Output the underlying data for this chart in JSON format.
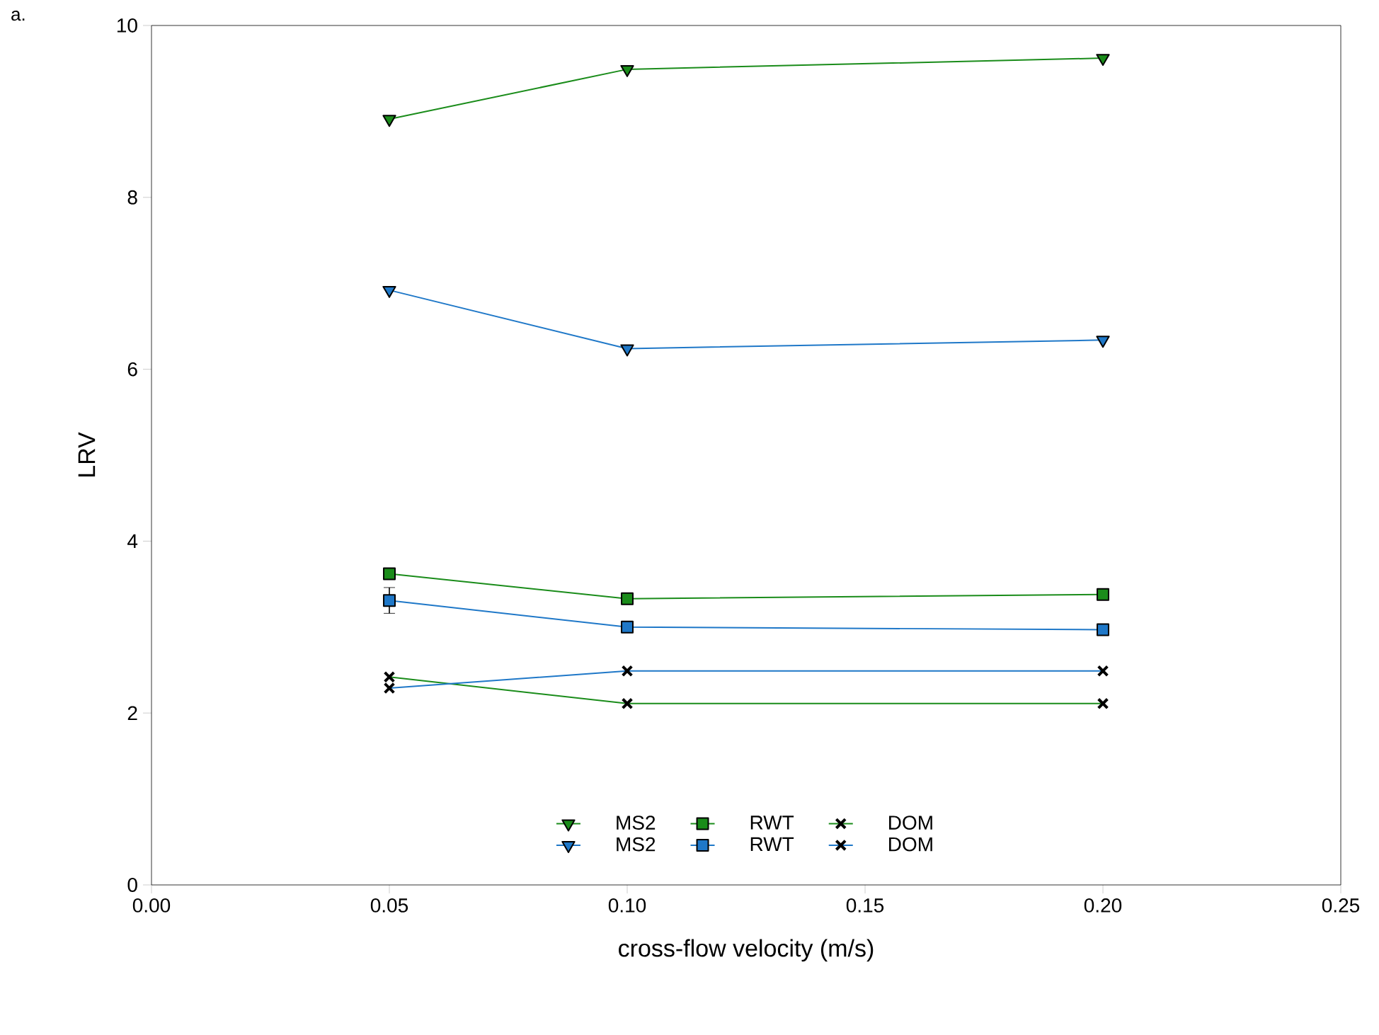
{
  "chart_data": {
    "type": "line",
    "xlabel": "cross-flow velocity (m/s)",
    "ylabel": "LRV",
    "annotations": [
      "a."
    ],
    "x": [
      0.05,
      0.1,
      0.2
    ],
    "xlim": [
      0,
      0.25
    ],
    "ylim": [
      0,
      10
    ],
    "xticks": [
      {
        "value": 0,
        "label": "0.00"
      },
      {
        "value": 0.05,
        "label": "0.05"
      },
      {
        "value": 0.1,
        "label": "0.10"
      },
      {
        "value": 0.15,
        "label": "0.15"
      },
      {
        "value": 0.2,
        "label": "0.20"
      },
      {
        "value": 0.25,
        "label": "0.25"
      }
    ],
    "yticks": [
      0,
      2,
      4,
      6,
      8,
      10
    ],
    "grid": false,
    "legend": "bottom",
    "line_style": "solid",
    "series": [
      {
        "name": "MS2",
        "color": "#1a8c1a",
        "marker": "triangle",
        "values": [
          8.91,
          9.49,
          9.62
        ]
      },
      {
        "name": "RWT",
        "color": "#1a8c1a",
        "marker": "square",
        "values": [
          3.62,
          3.33,
          3.38
        ],
        "errors": [
          0.05,
          0.05,
          0.05
        ]
      },
      {
        "name": "DOM",
        "color": "#1a8c1a",
        "marker": "cross",
        "values": [
          2.42,
          2.11,
          2.11
        ]
      },
      {
        "name": "MS2",
        "color": "#1f78c8",
        "marker": "triangle",
        "values": [
          6.92,
          6.24,
          6.34
        ]
      },
      {
        "name": "RWT",
        "color": "#1f78c8",
        "marker": "square",
        "values": [
          3.31,
          3.0,
          2.97
        ],
        "errors": [
          0.15,
          0.05,
          0.05
        ]
      },
      {
        "name": "DOM",
        "color": "#1f78c8",
        "marker": "cross",
        "values": [
          2.29,
          2.49,
          2.49
        ]
      }
    ]
  }
}
